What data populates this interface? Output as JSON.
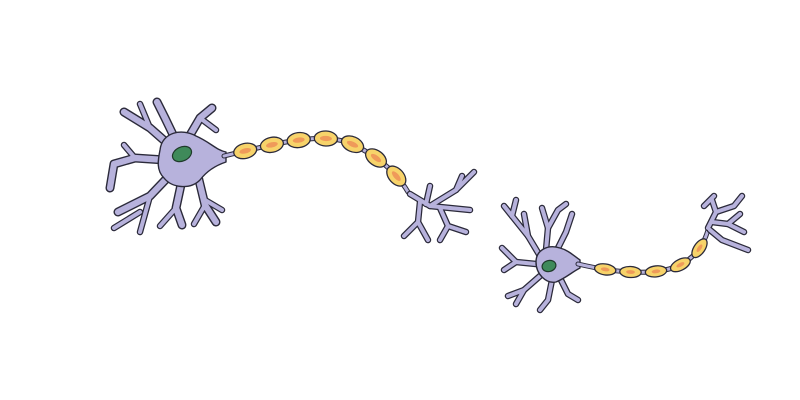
{
  "colors": {
    "background": "#ffffff",
    "cell_body": "#b7b2dc",
    "outline": "#2b2a3a",
    "nucleus": "#3f8a5a",
    "myelin_sheath": "#f7d36a",
    "schwann_nucleus": "#ef9a5a"
  },
  "diagram": {
    "neurons": [
      {
        "id": "neuron-1",
        "myelin_segments": 7
      },
      {
        "id": "neuron-2",
        "myelin_segments": 5
      }
    ]
  }
}
